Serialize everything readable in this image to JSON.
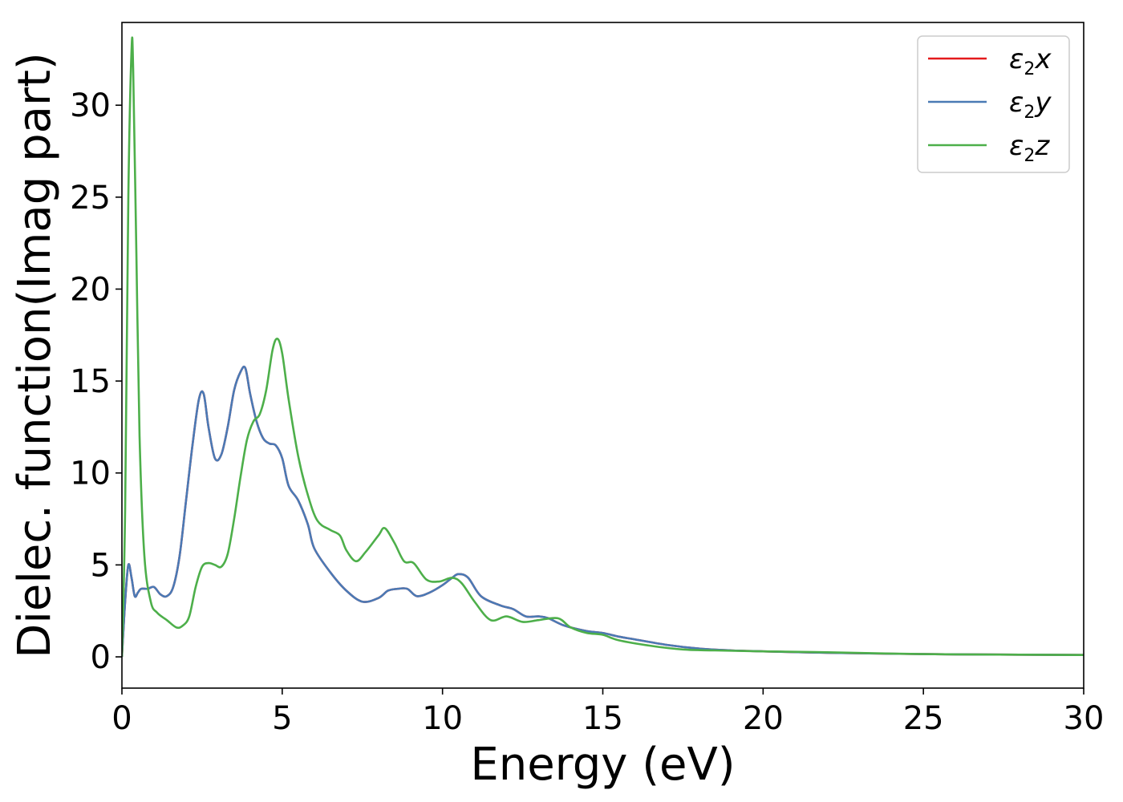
{
  "chart_data": {
    "type": "line",
    "xlabel": "Energy (eV)",
    "ylabel": "Dielec. function(Imag part)",
    "xlim": [
      0,
      30
    ],
    "ylim": [
      -1.7,
      34.5
    ],
    "xticks": [
      0,
      5,
      10,
      15,
      20,
      25,
      30
    ],
    "yticks": [
      0,
      5,
      10,
      15,
      20,
      25,
      30
    ],
    "grid": false,
    "legend_position": "top-right",
    "series": [
      {
        "name": "ε2x",
        "legend": {
          "base": "ε",
          "sub": "2",
          "suffix": "x"
        },
        "color": "#e41a1c",
        "x": [
          0,
          0.1,
          0.2,
          0.3,
          0.4,
          0.5,
          0.6,
          0.8,
          1.0,
          1.2,
          1.4,
          1.6,
          1.8,
          2.0,
          2.2,
          2.4,
          2.55,
          2.7,
          2.9,
          3.1,
          3.3,
          3.5,
          3.7,
          3.85,
          4.0,
          4.2,
          4.4,
          4.6,
          4.8,
          5.0,
          5.2,
          5.5,
          5.8,
          6.0,
          6.5,
          7.0,
          7.5,
          8.0,
          8.3,
          8.6,
          8.9,
          9.2,
          9.6,
          10.0,
          10.3,
          10.5,
          10.8,
          11.2,
          11.8,
          12.2,
          12.6,
          13.0,
          13.3,
          13.8,
          14.5,
          15.0,
          15.5,
          16.0,
          17.0,
          18.0,
          19.0,
          20.0,
          22.0,
          25.0,
          28.0,
          30.0
        ],
        "values": [
          0,
          3.0,
          5.0,
          4.3,
          3.3,
          3.5,
          3.7,
          3.7,
          3.8,
          3.4,
          3.3,
          3.8,
          5.5,
          8.5,
          11.5,
          14.0,
          14.3,
          12.5,
          10.8,
          11.0,
          12.5,
          14.5,
          15.5,
          15.7,
          14.3,
          12.8,
          11.9,
          11.6,
          11.5,
          10.8,
          9.3,
          8.5,
          7.2,
          5.9,
          4.6,
          3.6,
          3.0,
          3.2,
          3.6,
          3.7,
          3.7,
          3.3,
          3.5,
          3.9,
          4.3,
          4.5,
          4.3,
          3.3,
          2.8,
          2.6,
          2.2,
          2.2,
          2.1,
          1.7,
          1.4,
          1.3,
          1.1,
          0.95,
          0.65,
          0.45,
          0.35,
          0.3,
          0.22,
          0.15,
          0.12,
          0.1
        ]
      },
      {
        "name": "ε2y",
        "legend": {
          "base": "ε",
          "sub": "2",
          "suffix": "y"
        },
        "color": "#4a7ab5",
        "x": [
          0,
          0.1,
          0.2,
          0.3,
          0.4,
          0.5,
          0.6,
          0.8,
          1.0,
          1.2,
          1.4,
          1.6,
          1.8,
          2.0,
          2.2,
          2.4,
          2.55,
          2.7,
          2.9,
          3.1,
          3.3,
          3.5,
          3.7,
          3.85,
          4.0,
          4.2,
          4.4,
          4.6,
          4.8,
          5.0,
          5.2,
          5.5,
          5.8,
          6.0,
          6.5,
          7.0,
          7.5,
          8.0,
          8.3,
          8.6,
          8.9,
          9.2,
          9.6,
          10.0,
          10.3,
          10.5,
          10.8,
          11.2,
          11.8,
          12.2,
          12.6,
          13.0,
          13.3,
          13.8,
          14.5,
          15.0,
          15.5,
          16.0,
          17.0,
          18.0,
          19.0,
          20.0,
          22.0,
          25.0,
          28.0,
          30.0
        ],
        "values": [
          0,
          3.0,
          5.0,
          4.3,
          3.3,
          3.5,
          3.7,
          3.7,
          3.8,
          3.4,
          3.3,
          3.8,
          5.5,
          8.5,
          11.5,
          14.0,
          14.3,
          12.5,
          10.8,
          11.0,
          12.5,
          14.5,
          15.5,
          15.7,
          14.3,
          12.8,
          11.9,
          11.6,
          11.5,
          10.8,
          9.3,
          8.5,
          7.2,
          5.9,
          4.6,
          3.6,
          3.0,
          3.2,
          3.6,
          3.7,
          3.7,
          3.3,
          3.5,
          3.9,
          4.3,
          4.5,
          4.3,
          3.3,
          2.8,
          2.6,
          2.2,
          2.2,
          2.1,
          1.7,
          1.4,
          1.3,
          1.1,
          0.95,
          0.65,
          0.45,
          0.35,
          0.3,
          0.22,
          0.15,
          0.12,
          0.1
        ]
      },
      {
        "name": "ε2z",
        "legend": {
          "base": "ε",
          "sub": "2",
          "suffix": "z"
        },
        "color": "#4daf4a",
        "x": [
          0,
          0.1,
          0.2,
          0.3,
          0.35,
          0.45,
          0.55,
          0.7,
          0.9,
          1.1,
          1.4,
          1.7,
          1.9,
          2.1,
          2.3,
          2.5,
          2.7,
          2.9,
          3.1,
          3.3,
          3.5,
          3.7,
          3.9,
          4.1,
          4.3,
          4.5,
          4.7,
          4.85,
          5.0,
          5.2,
          5.5,
          5.8,
          6.1,
          6.5,
          6.8,
          7.0,
          7.3,
          7.6,
          8.0,
          8.2,
          8.5,
          8.8,
          9.1,
          9.5,
          9.9,
          10.3,
          10.6,
          11.0,
          11.5,
          12.0,
          12.5,
          13.0,
          13.6,
          14.0,
          14.5,
          15.0,
          15.5,
          16.5,
          17.5,
          18.5,
          20.0,
          22.0,
          25.0,
          28.0,
          30.0
        ],
        "values": [
          0,
          8.0,
          25.0,
          33.0,
          32.0,
          22.0,
          12.0,
          5.5,
          3.0,
          2.4,
          2.0,
          1.6,
          1.7,
          2.2,
          3.8,
          4.9,
          5.1,
          5.0,
          4.9,
          5.6,
          7.5,
          9.8,
          11.8,
          12.8,
          13.2,
          14.5,
          16.7,
          17.3,
          16.5,
          14.0,
          10.9,
          8.8,
          7.4,
          6.9,
          6.6,
          5.8,
          5.2,
          5.7,
          6.6,
          7.0,
          6.2,
          5.2,
          5.1,
          4.2,
          4.1,
          4.3,
          4.0,
          3.0,
          2.0,
          2.2,
          1.9,
          2.0,
          2.1,
          1.6,
          1.3,
          1.2,
          0.9,
          0.6,
          0.4,
          0.35,
          0.3,
          0.25,
          0.15,
          0.12,
          0.1
        ]
      }
    ]
  }
}
